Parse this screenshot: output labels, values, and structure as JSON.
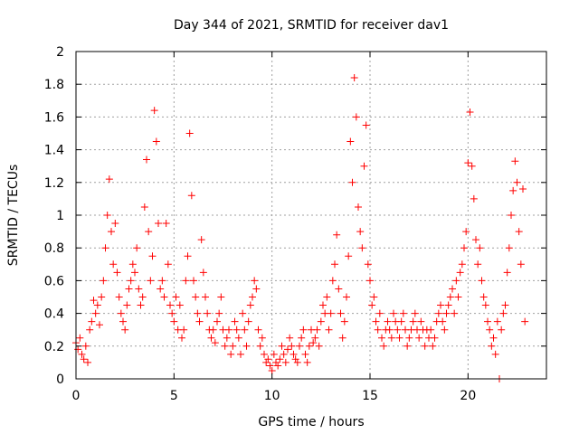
{
  "chart_data": {
    "type": "scatter",
    "title": "Day 344 of 2021, SRMTID for receiver dav1",
    "xlabel": "GPS time / hours",
    "ylabel": "SRMTID / TECUs",
    "xlim": [
      0,
      24
    ],
    "ylim": [
      0,
      2
    ],
    "xticks": [
      0,
      5,
      10,
      15,
      20
    ],
    "yticks": [
      0,
      0.2,
      0.4,
      0.6,
      0.8,
      1,
      1.2,
      1.4,
      1.6,
      1.8,
      2
    ],
    "xtick_labels": [
      "0",
      "5",
      "10",
      "15",
      "20"
    ],
    "ytick_labels": [
      "0",
      "0.2",
      "0.4",
      "0.6",
      "0.8",
      "1",
      "1.2",
      "1.4",
      "1.6",
      "1.8",
      "2"
    ],
    "grid": true,
    "marker": "+",
    "color": "#ff0000",
    "series": [
      {
        "name": "SRMTID",
        "points": [
          [
            0.0,
            0.22
          ],
          [
            0.1,
            0.18
          ],
          [
            0.2,
            0.25
          ],
          [
            0.3,
            0.15
          ],
          [
            0.4,
            0.12
          ],
          [
            0.5,
            0.2
          ],
          [
            0.6,
            0.1
          ],
          [
            0.7,
            0.3
          ],
          [
            0.8,
            0.35
          ],
          [
            0.9,
            0.48
          ],
          [
            1.0,
            0.4
          ],
          [
            1.1,
            0.45
          ],
          [
            1.2,
            0.33
          ],
          [
            1.3,
            0.5
          ],
          [
            1.4,
            0.6
          ],
          [
            1.5,
            0.8
          ],
          [
            1.6,
            1.0
          ],
          [
            1.7,
            1.22
          ],
          [
            1.8,
            0.9
          ],
          [
            1.9,
            0.7
          ],
          [
            2.0,
            0.95
          ],
          [
            2.1,
            0.65
          ],
          [
            2.2,
            0.5
          ],
          [
            2.3,
            0.4
          ],
          [
            2.4,
            0.35
          ],
          [
            2.5,
            0.3
          ],
          [
            2.6,
            0.45
          ],
          [
            2.7,
            0.55
          ],
          [
            2.8,
            0.6
          ],
          [
            2.9,
            0.7
          ],
          [
            3.0,
            0.65
          ],
          [
            3.1,
            0.8
          ],
          [
            3.2,
            0.55
          ],
          [
            3.3,
            0.45
          ],
          [
            3.4,
            0.5
          ],
          [
            3.5,
            1.05
          ],
          [
            3.6,
            1.34
          ],
          [
            3.7,
            0.9
          ],
          [
            3.8,
            0.6
          ],
          [
            3.9,
            0.75
          ],
          [
            4.0,
            1.64
          ],
          [
            4.1,
            1.45
          ],
          [
            4.2,
            0.95
          ],
          [
            4.3,
            0.55
          ],
          [
            4.4,
            0.6
          ],
          [
            4.5,
            0.5
          ],
          [
            4.6,
            0.95
          ],
          [
            4.7,
            0.7
          ],
          [
            4.8,
            0.45
          ],
          [
            4.9,
            0.4
          ],
          [
            5.0,
            0.35
          ],
          [
            5.1,
            0.5
          ],
          [
            5.2,
            0.3
          ],
          [
            5.3,
            0.45
          ],
          [
            5.4,
            0.25
          ],
          [
            5.5,
            0.3
          ],
          [
            5.6,
            0.6
          ],
          [
            5.7,
            0.75
          ],
          [
            5.8,
            1.5
          ],
          [
            5.9,
            1.12
          ],
          [
            6.0,
            0.6
          ],
          [
            6.1,
            0.5
          ],
          [
            6.2,
            0.4
          ],
          [
            6.3,
            0.35
          ],
          [
            6.4,
            0.85
          ],
          [
            6.5,
            0.65
          ],
          [
            6.6,
            0.5
          ],
          [
            6.7,
            0.4
          ],
          [
            6.8,
            0.3
          ],
          [
            6.9,
            0.25
          ],
          [
            7.0,
            0.3
          ],
          [
            7.1,
            0.22
          ],
          [
            7.2,
            0.35
          ],
          [
            7.3,
            0.4
          ],
          [
            7.4,
            0.5
          ],
          [
            7.5,
            0.3
          ],
          [
            7.6,
            0.2
          ],
          [
            7.7,
            0.25
          ],
          [
            7.8,
            0.3
          ],
          [
            7.9,
            0.15
          ],
          [
            8.0,
            0.2
          ],
          [
            8.1,
            0.35
          ],
          [
            8.2,
            0.3
          ],
          [
            8.3,
            0.25
          ],
          [
            8.4,
            0.15
          ],
          [
            8.5,
            0.4
          ],
          [
            8.6,
            0.3
          ],
          [
            8.7,
            0.2
          ],
          [
            8.8,
            0.35
          ],
          [
            8.9,
            0.45
          ],
          [
            9.0,
            0.5
          ],
          [
            9.1,
            0.6
          ],
          [
            9.2,
            0.55
          ],
          [
            9.3,
            0.3
          ],
          [
            9.4,
            0.2
          ],
          [
            9.5,
            0.25
          ],
          [
            9.6,
            0.15
          ],
          [
            9.7,
            0.1
          ],
          [
            9.8,
            0.12
          ],
          [
            9.9,
            0.08
          ],
          [
            10.0,
            0.05
          ],
          [
            10.1,
            0.15
          ],
          [
            10.2,
            0.1
          ],
          [
            10.3,
            0.08
          ],
          [
            10.4,
            0.12
          ],
          [
            10.5,
            0.2
          ],
          [
            10.6,
            0.15
          ],
          [
            10.7,
            0.1
          ],
          [
            10.8,
            0.18
          ],
          [
            10.9,
            0.25
          ],
          [
            11.0,
            0.2
          ],
          [
            11.1,
            0.15
          ],
          [
            11.2,
            0.12
          ],
          [
            11.3,
            0.1
          ],
          [
            11.4,
            0.2
          ],
          [
            11.5,
            0.25
          ],
          [
            11.6,
            0.3
          ],
          [
            11.7,
            0.15
          ],
          [
            11.8,
            0.1
          ],
          [
            11.9,
            0.2
          ],
          [
            12.0,
            0.3
          ],
          [
            12.1,
            0.22
          ],
          [
            12.2,
            0.25
          ],
          [
            12.3,
            0.3
          ],
          [
            12.4,
            0.2
          ],
          [
            12.5,
            0.35
          ],
          [
            12.6,
            0.45
          ],
          [
            12.7,
            0.4
          ],
          [
            12.8,
            0.5
          ],
          [
            12.9,
            0.3
          ],
          [
            13.0,
            0.4
          ],
          [
            13.1,
            0.6
          ],
          [
            13.2,
            0.7
          ],
          [
            13.3,
            0.88
          ],
          [
            13.4,
            0.55
          ],
          [
            13.5,
            0.4
          ],
          [
            13.6,
            0.25
          ],
          [
            13.7,
            0.35
          ],
          [
            13.8,
            0.5
          ],
          [
            13.9,
            0.75
          ],
          [
            14.0,
            1.45
          ],
          [
            14.1,
            1.2
          ],
          [
            14.2,
            1.84
          ],
          [
            14.3,
            1.6
          ],
          [
            14.4,
            1.05
          ],
          [
            14.5,
            0.9
          ],
          [
            14.6,
            0.8
          ],
          [
            14.7,
            1.3
          ],
          [
            14.8,
            1.55
          ],
          [
            14.9,
            0.7
          ],
          [
            15.0,
            0.6
          ],
          [
            15.1,
            0.45
          ],
          [
            15.2,
            0.5
          ],
          [
            15.3,
            0.35
          ],
          [
            15.4,
            0.3
          ],
          [
            15.5,
            0.4
          ],
          [
            15.6,
            0.25
          ],
          [
            15.7,
            0.2
          ],
          [
            15.8,
            0.3
          ],
          [
            15.9,
            0.35
          ],
          [
            16.0,
            0.3
          ],
          [
            16.1,
            0.25
          ],
          [
            16.2,
            0.4
          ],
          [
            16.3,
            0.35
          ],
          [
            16.4,
            0.3
          ],
          [
            16.5,
            0.25
          ],
          [
            16.6,
            0.35
          ],
          [
            16.7,
            0.4
          ],
          [
            16.8,
            0.3
          ],
          [
            16.9,
            0.2
          ],
          [
            17.0,
            0.25
          ],
          [
            17.1,
            0.3
          ],
          [
            17.2,
            0.35
          ],
          [
            17.3,
            0.4
          ],
          [
            17.4,
            0.3
          ],
          [
            17.5,
            0.25
          ],
          [
            17.6,
            0.35
          ],
          [
            17.7,
            0.3
          ],
          [
            17.8,
            0.2
          ],
          [
            17.9,
            0.3
          ],
          [
            18.0,
            0.25
          ],
          [
            18.1,
            0.3
          ],
          [
            18.2,
            0.2
          ],
          [
            18.3,
            0.25
          ],
          [
            18.4,
            0.35
          ],
          [
            18.5,
            0.4
          ],
          [
            18.6,
            0.45
          ],
          [
            18.7,
            0.35
          ],
          [
            18.8,
            0.3
          ],
          [
            18.9,
            0.4
          ],
          [
            19.0,
            0.45
          ],
          [
            19.1,
            0.5
          ],
          [
            19.2,
            0.55
          ],
          [
            19.3,
            0.4
          ],
          [
            19.4,
            0.6
          ],
          [
            19.5,
            0.5
          ],
          [
            19.6,
            0.65
          ],
          [
            19.7,
            0.7
          ],
          [
            19.8,
            0.8
          ],
          [
            19.9,
            0.9
          ],
          [
            20.0,
            1.32
          ],
          [
            20.1,
            1.63
          ],
          [
            20.2,
            1.3
          ],
          [
            20.3,
            1.1
          ],
          [
            20.4,
            0.85
          ],
          [
            20.5,
            0.7
          ],
          [
            20.6,
            0.8
          ],
          [
            20.7,
            0.6
          ],
          [
            20.8,
            0.5
          ],
          [
            20.9,
            0.45
          ],
          [
            21.0,
            0.35
          ],
          [
            21.1,
            0.3
          ],
          [
            21.2,
            0.2
          ],
          [
            21.3,
            0.25
          ],
          [
            21.4,
            0.15
          ],
          [
            21.5,
            0.35
          ],
          [
            21.6,
            0.0
          ],
          [
            21.7,
            0.3
          ],
          [
            21.8,
            0.4
          ],
          [
            21.9,
            0.45
          ],
          [
            22.0,
            0.65
          ],
          [
            22.1,
            0.8
          ],
          [
            22.2,
            1.0
          ],
          [
            22.3,
            1.15
          ],
          [
            22.4,
            1.33
          ],
          [
            22.5,
            1.2
          ],
          [
            22.6,
            0.9
          ],
          [
            22.7,
            0.7
          ],
          [
            22.8,
            1.16
          ],
          [
            22.9,
            0.35
          ]
        ]
      }
    ]
  }
}
